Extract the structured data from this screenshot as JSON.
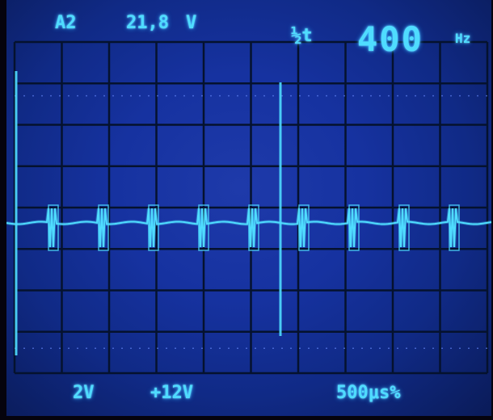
{
  "readouts": {
    "channel": "A2",
    "measurement": "21,8",
    "measurement_unit": "V",
    "mode_symbol": "½t",
    "frequency": "400",
    "frequency_unit": "Hz",
    "volts_per_div": "2V",
    "offset": "+12V",
    "time_per_div": "500μs%"
  },
  "colors": {
    "screen": "#1632a0",
    "trace": "#4fdcff",
    "graticule": "#05122e"
  },
  "graticule": {
    "divisions_x": 10,
    "divisions_y": 8
  }
}
